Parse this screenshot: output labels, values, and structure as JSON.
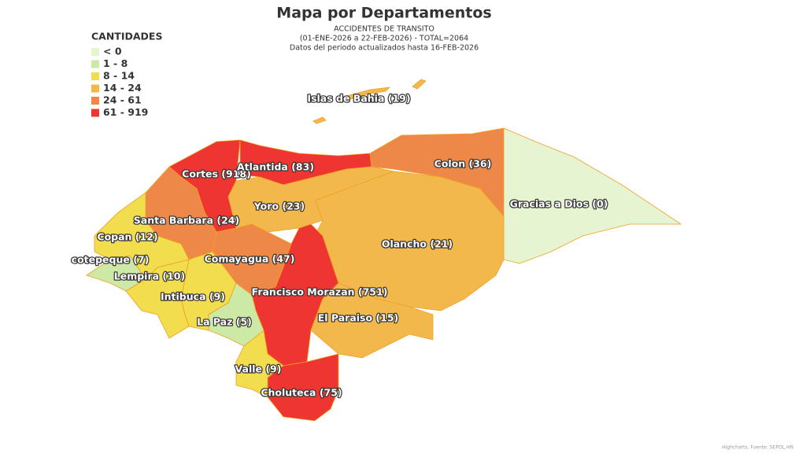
{
  "chart_data": {
    "type": "map",
    "title": "Mapa por Departamentos",
    "subtitles": [
      "ACCIDENTES DE TRANSITO",
      "(01-ENE-2026 a 22-FEB-2026) - TOTAL=2064",
      "Datos del periodo actualizados hasta 16-FEB-2026"
    ],
    "legend_title": "CANTIDADES",
    "legend": [
      {
        "label": "< 0",
        "color": "#e6f4d2"
      },
      {
        "label": "1 - 8",
        "color": "#cde9a6"
      },
      {
        "label": "8 - 14",
        "color": "#f1dd4e"
      },
      {
        "label": "14 - 24",
        "color": "#f2b84c"
      },
      {
        "label": "24 - 61",
        "color": "#ee8848"
      },
      {
        "label": "61 - 919",
        "color": "#ee3532"
      }
    ],
    "regions": [
      {
        "label": "Cortes (918)",
        "value": 918,
        "color": "#ee3532"
      },
      {
        "label": "Atlantida (83)",
        "value": 83,
        "color": "#ee3532"
      },
      {
        "label": "Colon (36)",
        "value": 36,
        "color": "#ee8848"
      },
      {
        "label": "Gracias a Dios (0)",
        "value": 0,
        "color": "#e6f4d2"
      },
      {
        "label": "Olancho (21)",
        "value": 21,
        "color": "#f2b84c"
      },
      {
        "label": "Yoro (23)",
        "value": 23,
        "color": "#f2b84c"
      },
      {
        "label": "Santa Barbara (24)",
        "value": 24,
        "color": "#ee8848"
      },
      {
        "label": "Comayagua (47)",
        "value": 47,
        "color": "#ee8848"
      },
      {
        "label": "Francisco Morazan (751)",
        "value": 751,
        "color": "#ee3532"
      },
      {
        "label": "El Paraiso (15)",
        "value": 15,
        "color": "#f2b84c"
      },
      {
        "label": "Choluteca (75)",
        "value": 75,
        "color": "#ee3532"
      },
      {
        "label": "Valle (9)",
        "value": 9,
        "color": "#f1dd4e"
      },
      {
        "label": "La Paz (5)",
        "value": 5,
        "color": "#cde9a6"
      },
      {
        "label": "Intibuca (9)",
        "value": 9,
        "color": "#f1dd4e"
      },
      {
        "label": "Lempira (10)",
        "value": 10,
        "color": "#f1dd4e"
      },
      {
        "label": "cotepeque (7)",
        "value": 7,
        "color": "#cde9a6"
      },
      {
        "label": "Copan (12)",
        "value": 12,
        "color": "#f1dd4e"
      },
      {
        "label": "Islas de Bahia (19)",
        "value": 19,
        "color": "#f2b84c"
      }
    ],
    "credits": "Highcharts, Fuente: SEPOL.HN"
  }
}
